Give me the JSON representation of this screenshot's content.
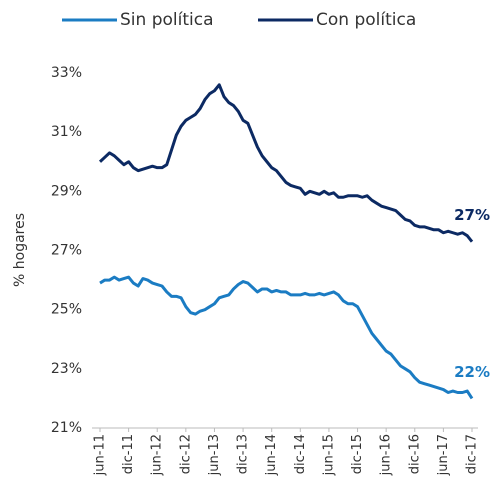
{
  "chart_data": {
    "type": "line",
    "ylabel": "% hogares",
    "categories": [
      "jun-11",
      null,
      null,
      null,
      null,
      null,
      "dic-11",
      null,
      null,
      null,
      null,
      null,
      "jun-12",
      null,
      null,
      null,
      null,
      null,
      "dic-12",
      null,
      null,
      null,
      null,
      null,
      "jun-13",
      null,
      null,
      null,
      null,
      null,
      "dic-13",
      null,
      null,
      null,
      null,
      null,
      "jun-14",
      null,
      null,
      null,
      null,
      null,
      "dic-14",
      null,
      null,
      null,
      null,
      null,
      "jun-15",
      null,
      null,
      null,
      null,
      null,
      "dic-15",
      null,
      null,
      null,
      null,
      null,
      "jun-16",
      null,
      null,
      null,
      null,
      null,
      "dic-16",
      null,
      null,
      null,
      null,
      null,
      "jun-17",
      null,
      null,
      null,
      null,
      null,
      "dic-17"
    ],
    "series": [
      {
        "name": "Sin política",
        "color": "#1b7cc3",
        "values": [
          25.9,
          26.0,
          26.0,
          26.1,
          26.0,
          26.05,
          26.1,
          25.9,
          25.8,
          26.05,
          26.0,
          25.9,
          25.85,
          25.8,
          25.6,
          25.45,
          25.45,
          25.4,
          25.1,
          24.9,
          24.85,
          24.95,
          25.0,
          25.1,
          25.2,
          25.4,
          25.45,
          25.5,
          25.7,
          25.85,
          25.95,
          25.9,
          25.75,
          25.6,
          25.7,
          25.7,
          25.6,
          25.65,
          25.6,
          25.6,
          25.5,
          25.5,
          25.5,
          25.55,
          25.5,
          25.5,
          25.55,
          25.5,
          25.55,
          25.6,
          25.5,
          25.3,
          25.2,
          25.2,
          25.1,
          24.8,
          24.5,
          24.2,
          24.0,
          23.8,
          23.6,
          23.5,
          23.3,
          23.1,
          23.0,
          22.9,
          22.7,
          22.55,
          22.5,
          22.45,
          22.4,
          22.35,
          22.3,
          22.2,
          22.25,
          22.2,
          22.2,
          22.25,
          22.0
        ],
        "value_labels": [
          null,
          null,
          null,
          null,
          null,
          null,
          null,
          null,
          null,
          null,
          null,
          null,
          null,
          null,
          null,
          null,
          null,
          null,
          null,
          null,
          null,
          null,
          null,
          null,
          null,
          null,
          null,
          null,
          null,
          null,
          null,
          null,
          null,
          null,
          null,
          null,
          null,
          null,
          null,
          null,
          null,
          null,
          null,
          null,
          null,
          null,
          null,
          null,
          null,
          null,
          null,
          null,
          null,
          null,
          null,
          null,
          null,
          null,
          null,
          null,
          null,
          null,
          null,
          null,
          null,
          null,
          null,
          null,
          null,
          null,
          null,
          null,
          null,
          null,
          null,
          null,
          null,
          null,
          "22%"
        ]
      },
      {
        "name": "Con política",
        "color": "#0c2a63",
        "values": [
          30.0,
          30.15,
          30.3,
          30.2,
          30.05,
          29.9,
          30.0,
          29.8,
          29.7,
          29.75,
          29.8,
          29.85,
          29.8,
          29.8,
          29.9,
          30.4,
          30.9,
          31.2,
          31.4,
          31.5,
          31.6,
          31.8,
          32.1,
          32.3,
          32.4,
          32.6,
          32.2,
          32.0,
          31.9,
          31.7,
          31.4,
          31.3,
          30.9,
          30.5,
          30.2,
          30.0,
          29.8,
          29.7,
          29.5,
          29.3,
          29.2,
          29.15,
          29.1,
          28.9,
          29.0,
          28.95,
          28.9,
          29.0,
          28.9,
          28.95,
          28.8,
          28.8,
          28.85,
          28.85,
          28.85,
          28.8,
          28.85,
          28.7,
          28.6,
          28.5,
          28.45,
          28.4,
          28.35,
          28.2,
          28.05,
          28.0,
          27.85,
          27.8,
          27.8,
          27.75,
          27.7,
          27.7,
          27.6,
          27.65,
          27.6,
          27.55,
          27.6,
          27.5,
          27.3
        ],
        "value_labels": [
          null,
          null,
          null,
          null,
          null,
          null,
          null,
          null,
          null,
          null,
          null,
          null,
          null,
          null,
          null,
          null,
          null,
          null,
          null,
          null,
          null,
          null,
          null,
          null,
          null,
          null,
          null,
          null,
          null,
          null,
          null,
          null,
          null,
          null,
          null,
          null,
          null,
          null,
          null,
          null,
          null,
          null,
          null,
          null,
          null,
          null,
          null,
          null,
          null,
          null,
          null,
          null,
          null,
          null,
          null,
          null,
          null,
          null,
          null,
          null,
          null,
          null,
          null,
          null,
          null,
          null,
          null,
          null,
          null,
          null,
          null,
          null,
          null,
          null,
          null,
          null,
          null,
          null,
          "27%"
        ]
      }
    ],
    "ylim": [
      21,
      33
    ],
    "yticks": [
      {
        "value": 21,
        "label": "21%"
      },
      {
        "value": 23,
        "label": "23%"
      },
      {
        "value": 25,
        "label": "25%"
      },
      {
        "value": 27,
        "label": "27%"
      },
      {
        "value": 29,
        "label": "29%"
      },
      {
        "value": 31,
        "label": "31%"
      },
      {
        "value": 33,
        "label": "33%"
      }
    ],
    "grid": false,
    "legend": "top"
  }
}
